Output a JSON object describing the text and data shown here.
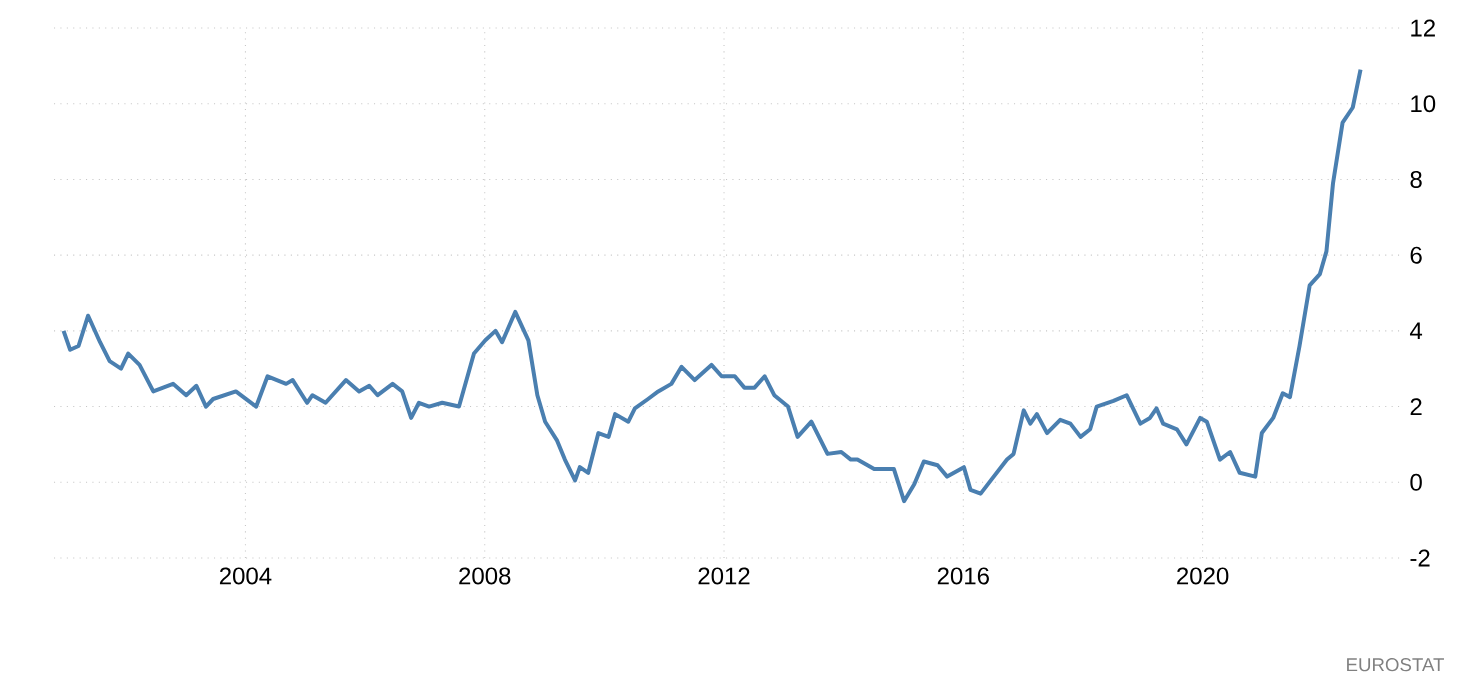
{
  "chart_data": {
    "type": "line",
    "color": "#4a7fb0",
    "grid": true,
    "x": [
      2000.96,
      2001.07,
      2001.21,
      2001.37,
      2001.57,
      2001.73,
      2001.92,
      2002.04,
      2002.23,
      2002.46,
      2002.79,
      2003.01,
      2003.18,
      2003.34,
      2003.46,
      2003.84,
      2004.18,
      2004.37,
      2004.68,
      2004.79,
      2005.03,
      2005.12,
      2005.34,
      2005.68,
      2005.9,
      2006.07,
      2006.21,
      2006.46,
      2006.62,
      2006.77,
      2006.9,
      2007.07,
      2007.29,
      2007.57,
      2007.82,
      2008.01,
      2008.18,
      2008.29,
      2008.51,
      2008.73,
      2008.88,
      2009.01,
      2009.21,
      2009.34,
      2009.51,
      2009.59,
      2009.73,
      2009.9,
      2010.07,
      2010.18,
      2010.4,
      2010.51,
      2010.73,
      2010.9,
      2011.12,
      2011.29,
      2011.51,
      2011.79,
      2011.96,
      2012.18,
      2012.34,
      2012.51,
      2012.68,
      2012.84,
      2013.07,
      2013.23,
      2013.46,
      2013.73,
      2013.96,
      2014.12,
      2014.23,
      2014.51,
      2014.84,
      2015.01,
      2015.18,
      2015.34,
      2015.57,
      2015.73,
      2016.01,
      2016.12,
      2016.29,
      2016.46,
      2016.73,
      2016.84,
      2017.01,
      2017.12,
      2017.23,
      2017.4,
      2017.62,
      2017.79,
      2017.96,
      2018.12,
      2018.23,
      2018.51,
      2018.73,
      2018.96,
      2019.12,
      2019.23,
      2019.34,
      2019.57,
      2019.73,
      2019.96,
      2020.07,
      2020.29,
      2020.46,
      2020.62,
      2020.88,
      2020.99,
      2021.18,
      2021.34,
      2021.46,
      2021.62,
      2021.79,
      2021.96,
      2022.07,
      2022.18,
      2022.34,
      2022.51,
      2022.64
    ],
    "values": [
      4.0,
      3.5,
      3.6,
      4.4,
      3.7,
      3.2,
      3.0,
      3.4,
      3.1,
      2.4,
      2.6,
      2.3,
      2.55,
      2.0,
      2.2,
      2.4,
      2.0,
      2.8,
      2.6,
      2.7,
      2.1,
      2.3,
      2.1,
      2.7,
      2.4,
      2.55,
      2.3,
      2.6,
      2.4,
      1.7,
      2.1,
      2.0,
      2.1,
      2.0,
      3.4,
      3.75,
      4.0,
      3.7,
      4.5,
      3.75,
      2.3,
      1.6,
      1.1,
      0.6,
      0.05,
      0.4,
      0.25,
      1.3,
      1.2,
      1.8,
      1.6,
      1.95,
      2.2,
      2.4,
      2.6,
      3.05,
      2.7,
      3.1,
      2.8,
      2.8,
      2.5,
      2.5,
      2.8,
      2.3,
      2.0,
      1.2,
      1.6,
      0.75,
      0.8,
      0.6,
      0.6,
      0.35,
      0.35,
      -0.5,
      -0.05,
      0.55,
      0.45,
      0.15,
      0.4,
      -0.2,
      -0.3,
      0.05,
      0.6,
      0.75,
      1.9,
      1.55,
      1.8,
      1.3,
      1.65,
      1.55,
      1.2,
      1.4,
      2.0,
      2.15,
      2.3,
      1.55,
      1.7,
      1.95,
      1.55,
      1.4,
      1.0,
      1.7,
      1.6,
      0.6,
      0.8,
      0.25,
      0.15,
      1.3,
      1.7,
      2.35,
      2.25,
      3.6,
      5.2,
      5.5,
      6.1,
      7.9,
      9.5,
      9.9,
      10.9
    ],
    "xlim": [
      2000.8,
      2023.3
    ],
    "xticks": [
      2004,
      2008,
      2012,
      2016,
      2020
    ],
    "ylim": [
      -2,
      12
    ],
    "yticks": [
      -2,
      0,
      2,
      4,
      6,
      8,
      10,
      12
    ],
    "annotations": [
      "EUROSTAT"
    ]
  }
}
